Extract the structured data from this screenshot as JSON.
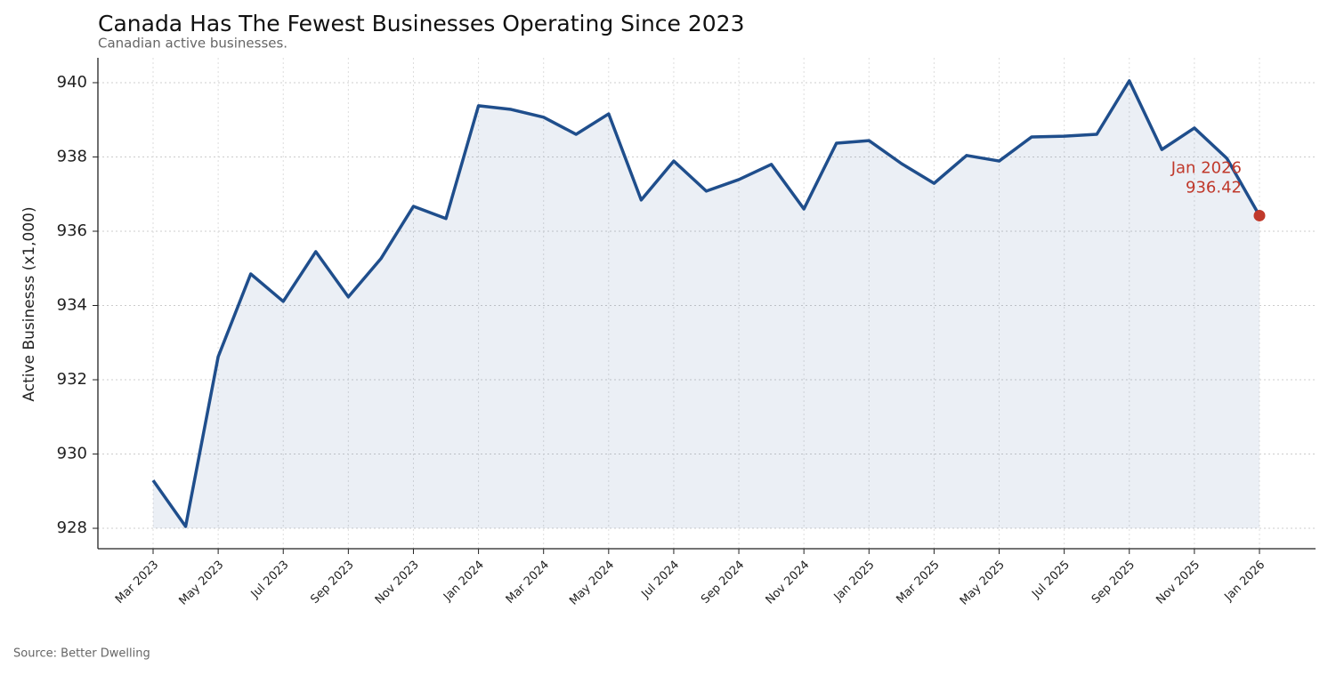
{
  "chart_data": {
    "type": "line",
    "title": "Canada Has The Fewest Businesses Operating Since 2023",
    "subtitle": "Canadian active businesses.",
    "y_label": "Active Businesss (x1,000)",
    "source": "Source: Better Dwelling",
    "categories": [
      "Mar 2023",
      null,
      "May 2023",
      null,
      "Jul 2023",
      null,
      "Sep 2023",
      null,
      "Nov 2023",
      null,
      "Jan 2024",
      null,
      "Mar 2024",
      null,
      "May 2024",
      null,
      "Jul 2024",
      null,
      "Sep 2024",
      null,
      "Nov 2024",
      null,
      "Jan 2025",
      null,
      "Mar 2025",
      null,
      "May 2025",
      null,
      "Jul 2025",
      null,
      "Sep 2025",
      null,
      "Nov 2025",
      null,
      "Jan 2026"
    ],
    "series": [
      {
        "name": "Active businesses",
        "color": "#1f4e8c",
        "values": [
          929.29,
          928.05,
          932.62,
          934.85,
          934.11,
          935.45,
          934.23,
          935.26,
          936.67,
          936.34,
          939.38,
          939.28,
          939.07,
          938.61,
          939.16,
          936.84,
          937.89,
          937.08,
          937.39,
          937.8,
          936.6,
          938.37,
          938.44,
          937.82,
          937.29,
          938.04,
          937.89,
          938.54,
          938.56,
          938.61,
          940.05,
          938.2,
          938.78,
          937.96,
          936.42
        ]
      }
    ],
    "highlight_color": "#c0392b",
    "ylim": [
      927.45,
      940.67
    ],
    "yticks": [
      928,
      930,
      932,
      934,
      936,
      938,
      940
    ],
    "grid": true
  }
}
